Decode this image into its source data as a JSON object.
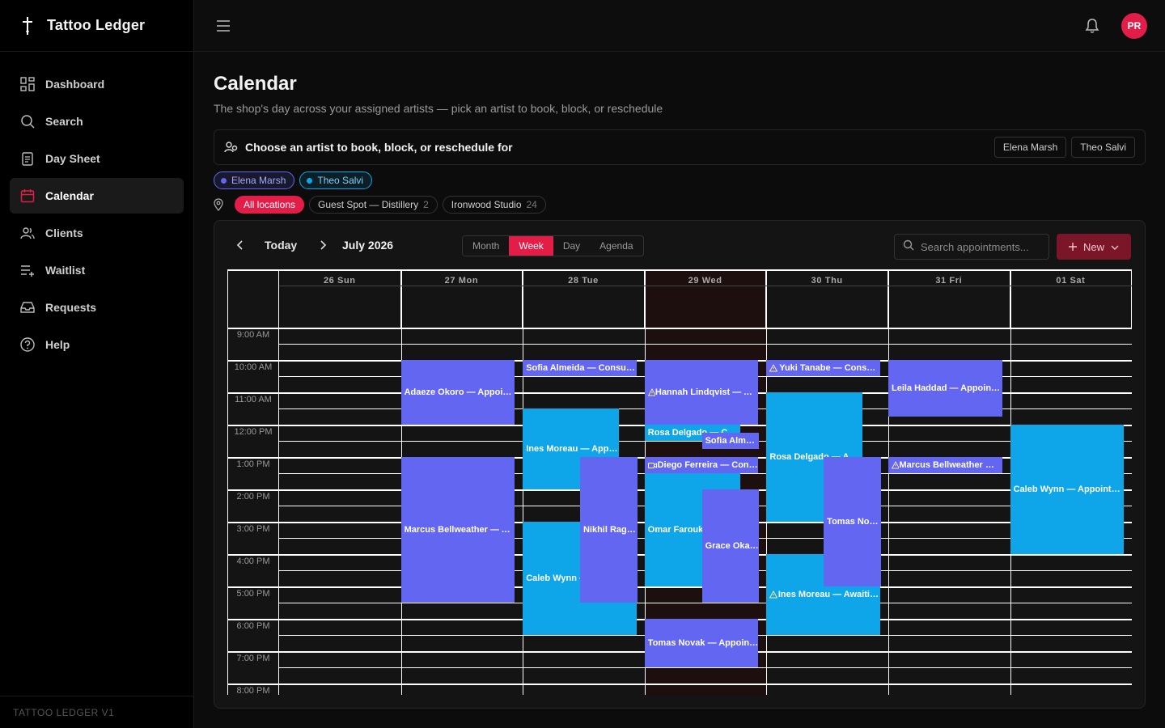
{
  "app": {
    "name": "Tattoo Ledger",
    "version_label": "TATTOO LEDGER V1"
  },
  "colors": {
    "accent": "#e11d48",
    "purple_event": "#6366f1",
    "blue_event": "#0ea5e9"
  },
  "sidebar": {
    "items": [
      {
        "label": "Dashboard",
        "icon": "dashboard-icon"
      },
      {
        "label": "Search",
        "icon": "search-icon"
      },
      {
        "label": "Day Sheet",
        "icon": "clipboard-icon"
      },
      {
        "label": "Calendar",
        "icon": "calendar-icon",
        "active": true
      },
      {
        "label": "Clients",
        "icon": "users-icon"
      },
      {
        "label": "Waitlist",
        "icon": "list-plus-icon"
      },
      {
        "label": "Requests",
        "icon": "inbox-icon"
      },
      {
        "label": "Help",
        "icon": "help-icon"
      }
    ]
  },
  "topbar": {
    "avatar_initials": "PR"
  },
  "page": {
    "title": "Calendar",
    "subtitle": "The shop's day across your assigned artists — pick an artist to book, block, or reschedule"
  },
  "artist_picker": {
    "label": "Choose an artist to book, block, or reschedule for",
    "buttons": [
      "Elena Marsh",
      "Theo Salvi"
    ]
  },
  "artist_chips": [
    {
      "label": "Elena Marsh",
      "color": "#6366f1"
    },
    {
      "label": "Theo Salvi",
      "color": "#0ea5e9"
    }
  ],
  "locations": [
    {
      "label": "All locations",
      "count": "",
      "active": true
    },
    {
      "label": "Guest Spot — Distillery",
      "count": "2"
    },
    {
      "label": "Ironwood Studio",
      "count": "24"
    }
  ],
  "toolbar": {
    "today": "Today",
    "month_label": "July 2026",
    "views": [
      "Month",
      "Week",
      "Day",
      "Agenda"
    ],
    "active_view": "Week",
    "search_placeholder": "Search appointments...",
    "new_label": "New"
  },
  "days": [
    "26 Sun",
    "27 Mon",
    "28 Tue",
    "29 Wed",
    "30 Thu",
    "31 Fri",
    "01 Sat"
  ],
  "today_index": 3,
  "hours": [
    "9:00 AM",
    "10:00 AM",
    "11:00 AM",
    "12:00 PM",
    "1:00 PM",
    "2:00 PM",
    "3:00 PM",
    "4:00 PM",
    "5:00 PM",
    "6:00 PM",
    "7:00 PM",
    "8:00 PM"
  ],
  "events": [
    {
      "day": 1,
      "start": 10.0,
      "end": 12.0,
      "lane": 0,
      "lanes": 1,
      "color": "purple",
      "label": "Adaeze Okoro — Appointment",
      "icon": ""
    },
    {
      "day": 1,
      "start": 13.0,
      "end": 17.5,
      "lane": 0,
      "lanes": 1,
      "color": "purple",
      "label": "Marcus Bellweather — Appointment",
      "icon": ""
    },
    {
      "day": 2,
      "start": 10.0,
      "end": 10.5,
      "lane": 0,
      "lanes": 1,
      "color": "purple",
      "label": "Sofia Almeida — Consultation",
      "icon": ""
    },
    {
      "day": 2,
      "start": 11.5,
      "end": 14.0,
      "lane": 0,
      "lanes": 1.2,
      "color": "blue",
      "label": "Ines Moreau — Appointment",
      "icon": ""
    },
    {
      "day": 2,
      "start": 15.0,
      "end": 18.5,
      "lane": 0,
      "lanes": 1,
      "color": "blue",
      "label": "Caleb Wynn — Appointment",
      "icon": ""
    },
    {
      "day": 2,
      "start": 13.0,
      "end": 17.5,
      "lane": 1,
      "lanes": 2,
      "color": "purple",
      "label": "Nikhil Raghavan — Appointment",
      "icon": ""
    },
    {
      "day": 3,
      "start": 10.0,
      "end": 12.0,
      "lane": 0,
      "lanes": 1,
      "color": "purple",
      "label": "Hannah Lindqvist — Awaiting deposit",
      "icon": "warning-icon"
    },
    {
      "day": 3,
      "start": 12.0,
      "end": 12.5,
      "lane": 0,
      "lanes": 1.2,
      "color": "blue",
      "label": "Rosa Delgado — Consultation",
      "icon": ""
    },
    {
      "day": 3,
      "start": 12.25,
      "end": 12.75,
      "lane": 1,
      "lanes": 2,
      "color": "purple",
      "label": "Sofia Almeida — Consultation",
      "icon": ""
    },
    {
      "day": 3,
      "start": 13.0,
      "end": 13.5,
      "lane": 0,
      "lanes": 1,
      "color": "purple",
      "label": "Diego Ferreira — Consultation",
      "icon": "video-icon"
    },
    {
      "day": 3,
      "start": 13.5,
      "end": 17.0,
      "lane": 0,
      "lanes": 1.2,
      "color": "blue",
      "label": "Omar Farouk — Appointment",
      "icon": ""
    },
    {
      "day": 3,
      "start": 14.0,
      "end": 17.5,
      "lane": 1,
      "lanes": 2,
      "color": "purple",
      "label": "Grace Okafor — Appointment",
      "icon": ""
    },
    {
      "day": 3,
      "start": 18.0,
      "end": 19.5,
      "lane": 0,
      "lanes": 1,
      "color": "purple",
      "label": "Tomas Novak — Appointment",
      "icon": ""
    },
    {
      "day": 4,
      "start": 10.0,
      "end": 10.5,
      "lane": 0,
      "lanes": 1,
      "color": "purple",
      "label": "Yuki Tanabe — Consultation",
      "icon": "warning-icon"
    },
    {
      "day": 4,
      "start": 11.0,
      "end": 15.0,
      "lane": 0,
      "lanes": 1.2,
      "color": "blue",
      "label": "Rosa Delgado — Appointment",
      "icon": ""
    },
    {
      "day": 4,
      "start": 13.0,
      "end": 17.0,
      "lane": 1,
      "lanes": 2,
      "color": "purple",
      "label": "Tomas Novak — Appointment",
      "icon": ""
    },
    {
      "day": 4,
      "start": 16.0,
      "end": 18.5,
      "lane": 0,
      "lanes": 1,
      "color": "blue",
      "label": "Ines Moreau — Awaiting deposit",
      "icon": "warning-icon"
    },
    {
      "day": 5,
      "start": 10.0,
      "end": 11.75,
      "lane": 0,
      "lanes": 1,
      "color": "purple",
      "label": "Leila Haddad — Appointment",
      "icon": ""
    },
    {
      "day": 5,
      "start": 13.0,
      "end": 13.5,
      "lane": 0,
      "lanes": 1,
      "color": "purple",
      "label": "Marcus Bellweather — Consultation",
      "icon": "warning-icon"
    },
    {
      "day": 6,
      "start": 12.0,
      "end": 16.0,
      "lane": 0,
      "lanes": 1,
      "color": "blue",
      "label": "Caleb Wynn — Appointment",
      "icon": ""
    }
  ]
}
